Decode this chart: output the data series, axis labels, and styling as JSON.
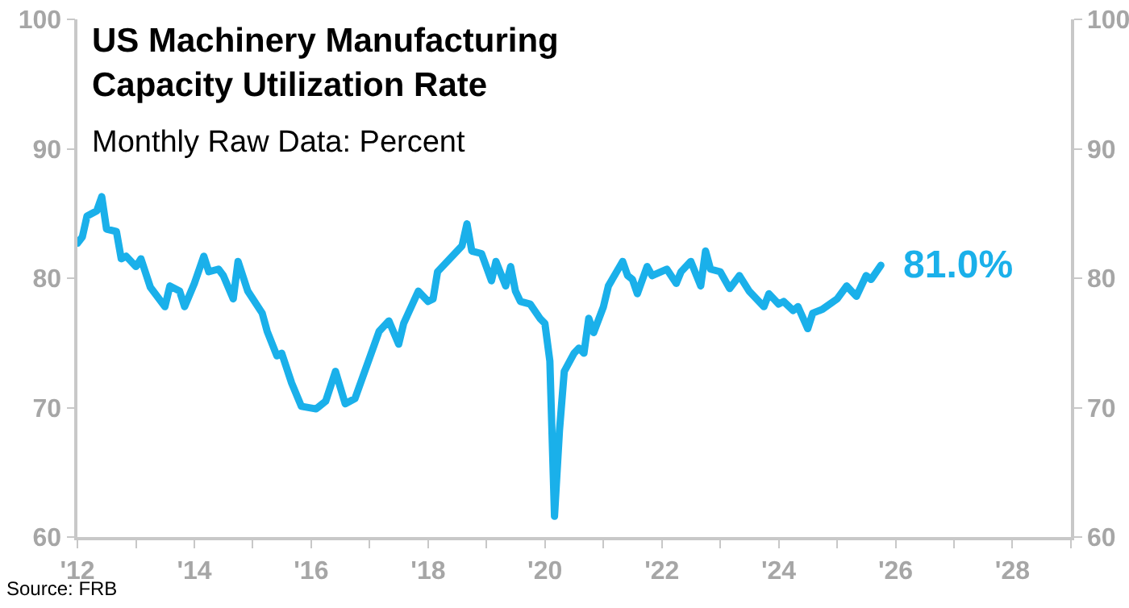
{
  "chart_data": {
    "type": "line",
    "title": "US Machinery Manufacturing\nCapacity Utilization Rate",
    "subtitle": "Monthly Raw Data: Percent",
    "annotations": [
      {
        "text": "81.0%",
        "x": "2025-10",
        "y": 81.0
      },
      "Source: FRB"
    ],
    "x": [
      "2012-01",
      "2012-02",
      "2012-03",
      "2012-05",
      "2012-06",
      "2012-07",
      "2012-09",
      "2012-10",
      "2012-11",
      "2013-01",
      "2013-02",
      "2013-04",
      "2013-07",
      "2013-08",
      "2013-10",
      "2013-11",
      "2014-01",
      "2014-03",
      "2014-04",
      "2014-06",
      "2014-07",
      "2014-09",
      "2014-10",
      "2014-12",
      "2015-03",
      "2015-04",
      "2015-06",
      "2015-07",
      "2015-09",
      "2015-11",
      "2016-02",
      "2016-04",
      "2016-06",
      "2016-08",
      "2016-10",
      "2016-12",
      "2017-03",
      "2017-05",
      "2017-07",
      "2017-08",
      "2017-11",
      "2018-01",
      "2018-02",
      "2018-03",
      "2018-07",
      "2018-08",
      "2018-09",
      "2018-10",
      "2018-12",
      "2019-02",
      "2019-03",
      "2019-05",
      "2019-06",
      "2019-07",
      "2019-08",
      "2019-10",
      "2019-12",
      "2020-01",
      "2020-02",
      "2020-03",
      "2020-04",
      "2020-05",
      "2020-07",
      "2020-08",
      "2020-09",
      "2020-10",
      "2020-11",
      "2021-01",
      "2021-02",
      "2021-05",
      "2021-06",
      "2021-07",
      "2021-08",
      "2021-10",
      "2021-11",
      "2022-02",
      "2022-04",
      "2022-05",
      "2022-07",
      "2022-09",
      "2022-10",
      "2022-11",
      "2023-01",
      "2023-03",
      "2023-05",
      "2023-07",
      "2023-10",
      "2023-11",
      "2024-01",
      "2024-02",
      "2024-04",
      "2024-05",
      "2024-07",
      "2024-08",
      "2024-10",
      "2025-01",
      "2025-03",
      "2025-05",
      "2025-07",
      "2025-08",
      "2025-10"
    ],
    "series": [
      {
        "color": "#1ab0ea",
        "values": [
          82.7,
          83.2,
          84.8,
          85.2,
          86.3,
          83.8,
          83.6,
          81.5,
          81.7,
          80.9,
          81.5,
          79.3,
          77.8,
          79.4,
          79.0,
          77.8,
          79.6,
          81.7,
          80.5,
          80.7,
          80.2,
          78.4,
          81.3,
          79.0,
          77.3,
          75.9,
          74.0,
          74.2,
          71.9,
          70.1,
          69.9,
          70.5,
          72.8,
          70.3,
          70.7,
          72.8,
          75.9,
          76.7,
          74.9,
          76.5,
          79.0,
          78.2,
          78.4,
          80.5,
          82.1,
          82.5,
          84.2,
          82.1,
          81.9,
          79.8,
          81.3,
          79.4,
          80.9,
          79.0,
          78.2,
          78.0,
          76.9,
          76.5,
          73.6,
          61.6,
          68.2,
          72.8,
          74.2,
          74.6,
          74.2,
          76.9,
          75.8,
          77.8,
          79.4,
          81.3,
          80.2,
          79.9,
          78.8,
          80.9,
          80.2,
          80.7,
          79.6,
          80.5,
          81.3,
          79.4,
          82.1,
          80.7,
          80.5,
          79.2,
          80.2,
          79.0,
          77.8,
          78.8,
          78.0,
          78.2,
          77.5,
          77.8,
          76.1,
          77.3,
          77.6,
          78.4,
          79.4,
          78.6,
          80.2,
          79.9,
          81.0
        ]
      }
    ],
    "xlim": [
      "2012-01",
      "2029-01"
    ],
    "xticks": [
      {
        "value": "2012-01",
        "label": "'12"
      },
      {
        "value": "2013-01",
        "label": null
      },
      {
        "value": "2014-01",
        "label": "'14"
      },
      {
        "value": "2015-01",
        "label": null
      },
      {
        "value": "2016-01",
        "label": "'16"
      },
      {
        "value": "2017-01",
        "label": null
      },
      {
        "value": "2018-01",
        "label": "'18"
      },
      {
        "value": "2019-01",
        "label": null
      },
      {
        "value": "2020-01",
        "label": "'20"
      },
      {
        "value": "2021-01",
        "label": null
      },
      {
        "value": "2022-01",
        "label": "'22"
      },
      {
        "value": "2023-01",
        "label": null
      },
      {
        "value": "2024-01",
        "label": "'24"
      },
      {
        "value": "2025-01",
        "label": null
      },
      {
        "value": "2026-01",
        "label": "'26"
      },
      {
        "value": "2027-01",
        "label": null
      },
      {
        "value": "2028-01",
        "label": "'28"
      },
      {
        "value": "2029-01",
        "label": null
      }
    ],
    "ylim": [
      60,
      100
    ],
    "yticks": [
      60,
      70,
      80,
      90,
      100
    ],
    "y2lim": [
      60,
      100
    ],
    "y2ticks": [
      60,
      70,
      80,
      90,
      100
    ],
    "grid": false,
    "legend": false,
    "marker": "none",
    "line_style": "solid"
  }
}
